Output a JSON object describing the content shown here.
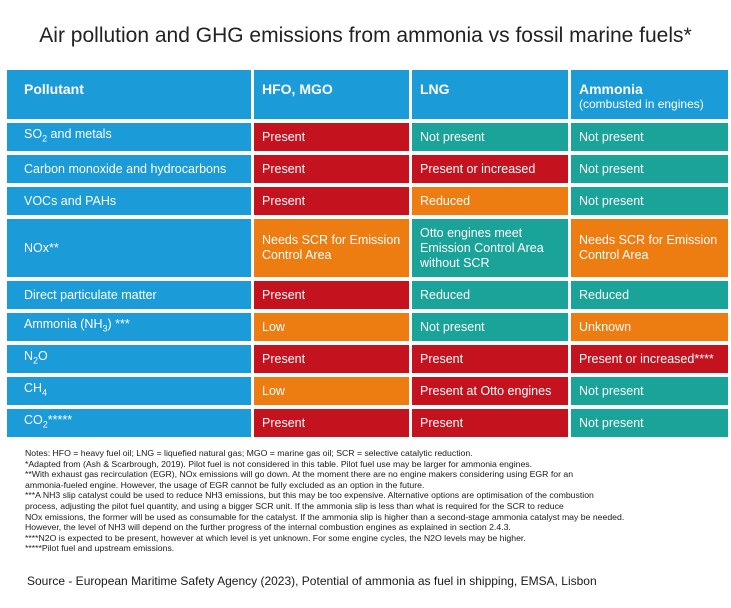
{
  "title": "Air pollution and GHG emissions from ammonia vs fossil marine fuels*",
  "colors": {
    "header": "#1b9bd8",
    "present": "#c4121f",
    "reduced": "#ee7d11",
    "not_present": "#1aa398"
  },
  "table": {
    "headers": {
      "pollutant": "Pollutant",
      "hfo": "HFO, MGO",
      "lng": "LNG",
      "ammonia": "Ammonia",
      "ammonia_sub": "(combusted in engines)"
    },
    "rows": [
      {
        "pollutant_main": "SO",
        "pollutant_sub": "2",
        "pollutant_tail": " and metals",
        "hfo": "Present",
        "lng": "Not present",
        "ammonia": "Not present"
      },
      {
        "pollutant_main": "Carbon monoxide and hydrocarbons",
        "hfo": "Present",
        "lng": "Present or increased",
        "ammonia": "Not present"
      },
      {
        "pollutant_main": "VOCs and PAHs",
        "hfo": "Present",
        "lng": "Reduced",
        "ammonia": "Not present"
      },
      {
        "pollutant_main": "NOx**",
        "hfo": "Needs SCR for Emission Control Area",
        "lng": "Otto engines meet Emission Control Area without SCR",
        "ammonia": "Needs SCR for Emission Control Area"
      },
      {
        "pollutant_main": "Direct particulate matter",
        "hfo": "Present",
        "lng": "Reduced",
        "ammonia": "Reduced"
      },
      {
        "pollutant_main": "Ammonia (NH",
        "pollutant_sub": "3",
        "pollutant_tail": ") ***",
        "hfo": "Low",
        "lng": "Not present",
        "ammonia": "Unknown"
      },
      {
        "pollutant_main": "N",
        "pollutant_sub": "2",
        "pollutant_tail": "O",
        "hfo": "Present",
        "lng": "Present",
        "ammonia": "Present or increased****"
      },
      {
        "pollutant_main": "CH",
        "pollutant_sub": "4",
        "pollutant_tail": "",
        "hfo": "Low",
        "lng": "Present at Otto engines",
        "ammonia": "Not present"
      },
      {
        "pollutant_main": "CO",
        "pollutant_sub": "2",
        "pollutant_tail": "*****",
        "hfo": "Present",
        "lng": "Present",
        "ammonia": "Not present"
      }
    ]
  },
  "notes": [
    "Notes: HFO = heavy fuel oil; LNG = liquefied natural gas; MGO = marine gas oil; SCR = selective catalytic reduction.",
    "*Adapted from (Ash & Scarbrough, 2019). Pilot fuel is not considered in this table. Pilot fuel use may be larger for ammonia engines.",
    "**With exhaust gas recirculation (EGR), NOx emissions will go down. At the moment there are no engine makers considering using EGR for an",
    "ammonia-fueled engine. However, the usage of EGR cannot be fully excluded as an option in the future.",
    "***A NH3 slip catalyst could be used to reduce NH3 emissions, but this may be too expensive. Alternative options are optimisation of the combustion",
    "process, adjusting the pilot fuel quantity, and using a bigger SCR unit. If the ammonia slip is less than what is required for the SCR to reduce",
    "NOx emissions, the former will be used as consumable for the catalyst. If the ammonia slip is higher than a second-stage ammonia catalyst may be needed.",
    "However, the level of NH3 will depend on the further progress of the internal combustion engines as explained in section 2.4.3.",
    "****N2O is expected to be present, however at which level is yet unknown. For some engine cycles, the N2O levels may be higher.",
    "*****Pilot fuel and upstream emissions."
  ],
  "source": "Source - European Maritime Safety Agency (2023), Potential of ammonia as fuel in shipping, EMSA, Lisbon"
}
